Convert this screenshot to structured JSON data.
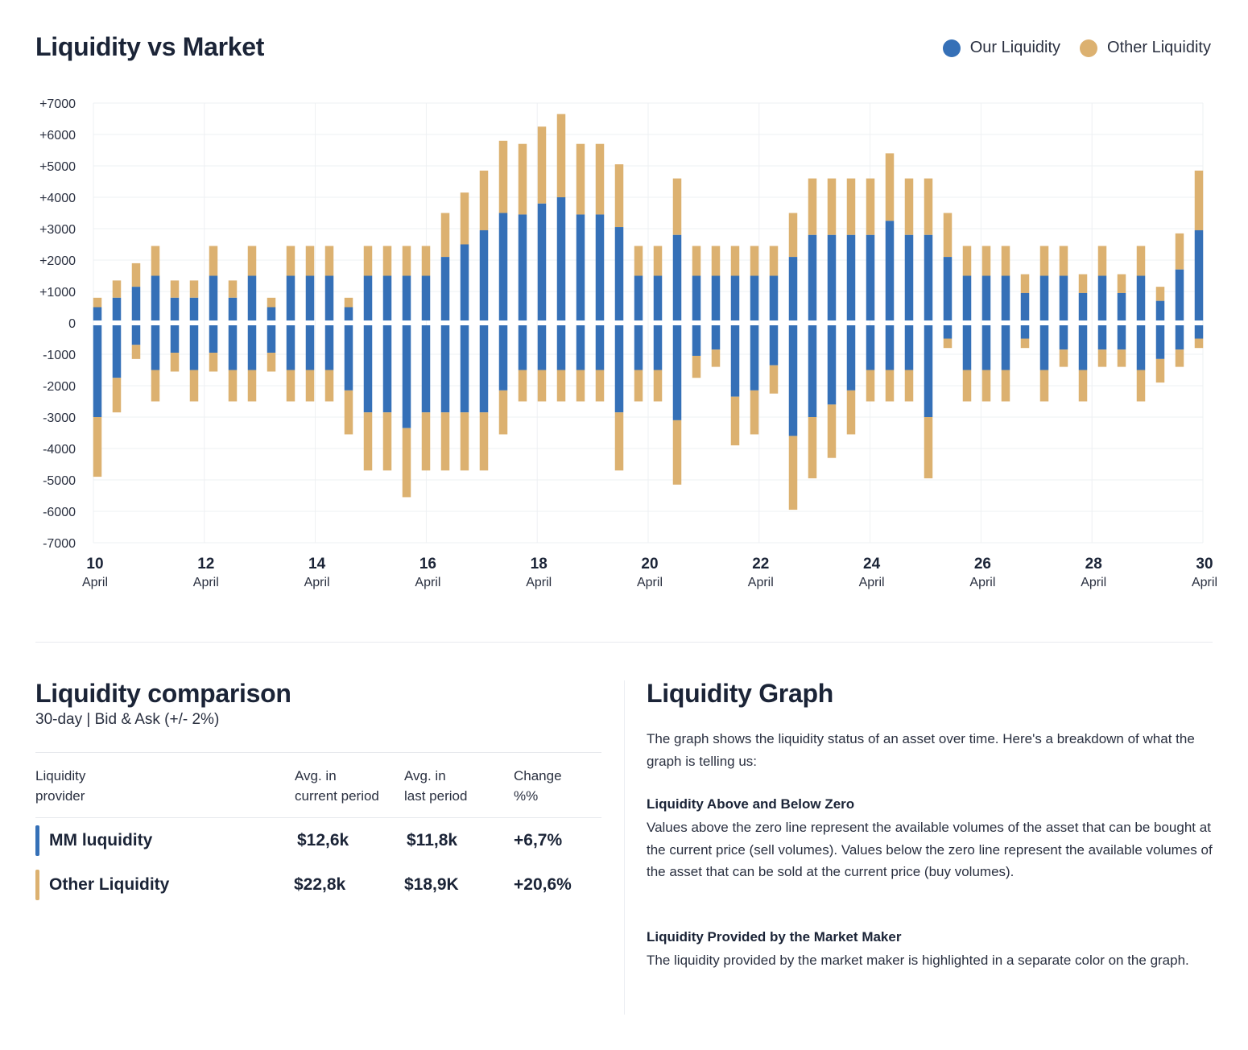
{
  "chart_title": "Liquidity vs Market",
  "legend": {
    "our": {
      "label": "Our Liquidity",
      "color": "#3570b7"
    },
    "other": {
      "label": "Other Liquidity",
      "color": "#dcb170"
    }
  },
  "chart_data": {
    "type": "bar",
    "title": "Liquidity vs Market",
    "stacked": true,
    "grid": true,
    "legend_position": "top-right",
    "ylim": [
      -7000,
      7000
    ],
    "y_ticks": [
      7000,
      6000,
      5000,
      4000,
      3000,
      2000,
      1000,
      0,
      -1000,
      -2000,
      -3000,
      -4000,
      -5000,
      -6000,
      -7000
    ],
    "y_tick_labels": [
      "+7000",
      "+6000",
      "+5000",
      "+4000",
      "+3000",
      "+2000",
      "+1000",
      "0",
      "-1000",
      "-2000",
      "-3000",
      "-4000",
      "-5000",
      "-6000",
      "-7000"
    ],
    "x_ticks": [
      {
        "day": "10",
        "month": "April"
      },
      {
        "day": "12",
        "month": "April"
      },
      {
        "day": "14",
        "month": "April"
      },
      {
        "day": "16",
        "month": "April"
      },
      {
        "day": "18",
        "month": "April"
      },
      {
        "day": "20",
        "month": "April"
      },
      {
        "day": "22",
        "month": "April"
      },
      {
        "day": "24",
        "month": "April"
      },
      {
        "day": "26",
        "month": "April"
      },
      {
        "day": "28",
        "month": "April"
      },
      {
        "day": "30",
        "month": "April"
      }
    ],
    "series": [
      {
        "name": "Our Liquidity",
        "color": "#3570b7",
        "positive": [
          500,
          800,
          1150,
          1500,
          800,
          800,
          1500,
          800,
          1500,
          500,
          1500,
          1500,
          1500,
          500,
          1500,
          1500,
          1500,
          1500,
          2100,
          2500,
          2950,
          3500,
          3450,
          3800,
          4000,
          3450,
          3450,
          3050,
          1500,
          1500,
          2800,
          1500,
          1500,
          1500,
          1500,
          1500,
          2100,
          2800,
          2800,
          2800,
          2800,
          3250,
          2800,
          2800,
          2100,
          1500,
          1500,
          1500,
          950,
          1500,
          1500,
          950,
          1500,
          950,
          1500,
          700,
          1700,
          2950
        ],
        "negative": [
          -3000,
          -1750,
          -700,
          -1500,
          -950,
          -1500,
          -950,
          -1500,
          -1500,
          -950,
          -1500,
          -1500,
          -1500,
          -2150,
          -2850,
          -2850,
          -3350,
          -2850,
          -2850,
          -2850,
          -2850,
          -2150,
          -1500,
          -1500,
          -1500,
          -1500,
          -1500,
          -2850,
          -1500,
          -1500,
          -3100,
          -1050,
          -850,
          -2350,
          -2150,
          -1350,
          -3600,
          -3000,
          -2600,
          -2150,
          -1500,
          -1500,
          -1500,
          -3000,
          -500,
          -1500,
          -1500,
          -1500,
          -500,
          -1500,
          -850,
          -1500,
          -850,
          -850,
          -1500,
          -1150,
          -850,
          -500
        ]
      },
      {
        "name": "Other Liquidity",
        "color": "#dcb170",
        "positive": [
          300,
          550,
          750,
          950,
          550,
          550,
          950,
          550,
          950,
          300,
          950,
          950,
          950,
          300,
          950,
          950,
          950,
          950,
          1400,
          1650,
          1900,
          2300,
          2250,
          2450,
          2650,
          2250,
          2250,
          2000,
          950,
          950,
          1800,
          950,
          950,
          950,
          950,
          950,
          1400,
          1800,
          1800,
          1800,
          1800,
          2150,
          1800,
          1800,
          1400,
          950,
          950,
          950,
          600,
          950,
          950,
          600,
          950,
          600,
          950,
          450,
          1150,
          1900
        ],
        "negative": [
          -1900,
          -1100,
          -450,
          -1000,
          -600,
          -1000,
          -600,
          -1000,
          -1000,
          -600,
          -1000,
          -1000,
          -1000,
          -1400,
          -1850,
          -1850,
          -2200,
          -1850,
          -1850,
          -1850,
          -1850,
          -1400,
          -1000,
          -1000,
          -1000,
          -1000,
          -1000,
          -1850,
          -1000,
          -1000,
          -2050,
          -700,
          -550,
          -1550,
          -1400,
          -900,
          -2350,
          -1950,
          -1700,
          -1400,
          -1000,
          -1000,
          -1000,
          -1950,
          -300,
          -1000,
          -1000,
          -1000,
          -300,
          -1000,
          -550,
          -1000,
          -550,
          -550,
          -1000,
          -750,
          -550,
          -300
        ]
      }
    ]
  },
  "comparison": {
    "title": "Liquidity comparison",
    "subtitle": "30-day | Bid & Ask (+/- 2%)",
    "headers": [
      {
        "line1": "Liquidity",
        "line2": "provider"
      },
      {
        "line1": "Avg. in",
        "line2": "current period"
      },
      {
        "line1": "Avg. in",
        "line2": "last period"
      },
      {
        "line1": "Change",
        "line2": "%%"
      }
    ],
    "rows": [
      {
        "provider": "MM luquidity",
        "current": "$12,6k",
        "last": "$11,8k",
        "change": "+6,7%",
        "color": "#3570b7"
      },
      {
        "provider": "Other Liquidity",
        "current": "$22,8k",
        "last": "$18,9K",
        "change": "+20,6%",
        "color": "#dcb170"
      }
    ]
  },
  "graph_info": {
    "title": "Liquidity Graph",
    "intro": "The graph shows the liquidity status of an asset over time. Here's a breakdown of what the graph is telling us:",
    "section1_title": "Liquidity Above and Below Zero",
    "section1_text": "Values above the zero line represent the available volumes of the asset that can be bought at the current price (sell volumes). Values below the zero line represent the available volumes of the asset that can be sold at the current price (buy volumes).",
    "section2_title": "Liquidity Provided by the Market Maker",
    "section2_text": "The liquidity provided by the market maker is highlighted in a separate color on the graph."
  }
}
